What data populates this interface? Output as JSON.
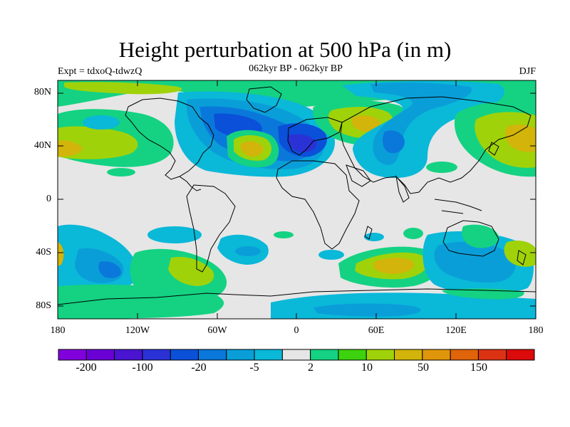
{
  "title": "Height perturbation at 500 hPa (in m)",
  "subtitle_left": "Expt = tdxoQ-tdwzQ",
  "subtitle_center": "062kyr BP - 062kyr BP",
  "subtitle_right": "DJF",
  "map": {
    "type": "filled-contour world map",
    "projection": "cylindrical equidistant",
    "ocean_fill": "#e6e6e6",
    "lat_labels": [
      "80N",
      "40N",
      "0",
      "40S",
      "80S"
    ],
    "lon_labels": [
      "180",
      "120W",
      "60W",
      "0",
      "60E",
      "120E",
      "180"
    ]
  },
  "colorbar": {
    "colors": [
      "#8200dc",
      "#6a00d6",
      "#4a14d0",
      "#2a32d6",
      "#0a50d8",
      "#0a78da",
      "#0a9ed8",
      "#0ab8d8",
      "#e6e6e6",
      "#14d282",
      "#3cd20e",
      "#a0d20a",
      "#d2b40a",
      "#e0960a",
      "#e0640a",
      "#dc3214",
      "#dc0a0a"
    ],
    "labels": [
      "-200",
      "-100",
      "-20",
      "-5",
      "2",
      "10",
      "50",
      "150"
    ]
  }
}
